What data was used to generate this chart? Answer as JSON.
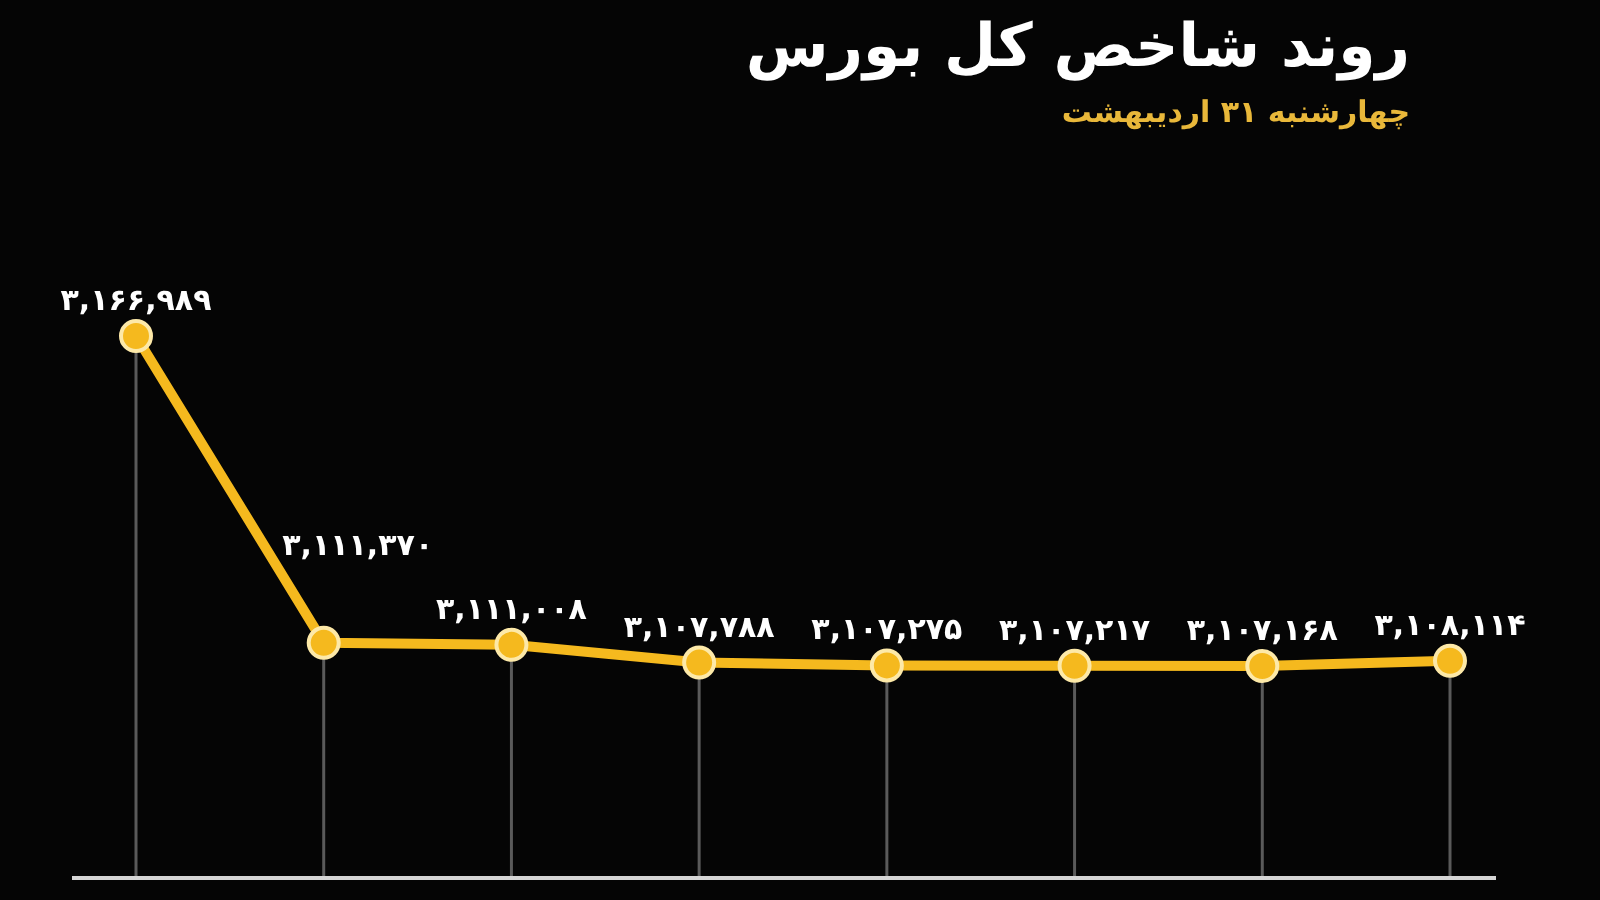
{
  "chart_data": {
    "type": "line",
    "title": "روند شاخص کل بورس",
    "subtitle": "چهارشنبه ۳۱ اردیبهشت",
    "categories": [
      null,
      null,
      null,
      null,
      null,
      null,
      null,
      null
    ],
    "series": [
      {
        "color": "#f5b91e",
        "values": [
          3166989,
          3111370,
          3111008,
          3107788,
          3107275,
          3107217,
          3107168,
          3108114
        ],
        "value_labels": [
          "۳,۱۶۶,۹۸۹",
          "۳,۱۱۱,۳۷۰",
          "۳,۱۱۱,۰۰۸",
          "۳,۱۰۷,۷۸۸",
          "۳,۱۰۷,۲۷۵",
          "۳,۱۰۷,۲۱۷",
          "۳,۱۰۷,۱۶۸",
          "۳,۱۰۸,۱۱۴"
        ]
      }
    ],
    "marker": "circle"
  }
}
